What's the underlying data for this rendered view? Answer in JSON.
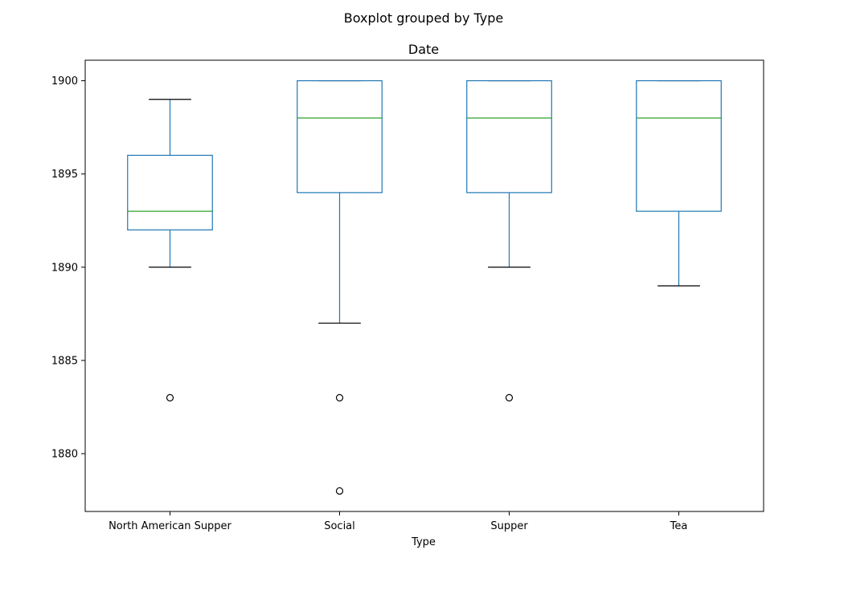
{
  "chart_data": {
    "type": "boxplot",
    "suptitle": "Boxplot grouped by Type",
    "title": "Date",
    "xlabel": "Type",
    "ylabel": "",
    "ylim": [
      1876.9,
      1901.1
    ],
    "yticks": [
      1880,
      1885,
      1890,
      1895,
      1900
    ],
    "grid": false,
    "categories": [
      "North American Supper",
      "Social",
      "Supper",
      "Tea"
    ],
    "boxes": [
      {
        "category": "North American Supper",
        "whisker_low": 1890,
        "q1": 1892,
        "median": 1893,
        "q3": 1896,
        "whisker_high": 1899,
        "outliers": [
          1883
        ]
      },
      {
        "category": "Social",
        "whisker_low": 1887,
        "q1": 1894,
        "median": 1898,
        "q3": 1900,
        "whisker_high": 1900,
        "outliers": [
          1883,
          1878
        ]
      },
      {
        "category": "Supper",
        "whisker_low": 1890,
        "q1": 1894,
        "median": 1898,
        "q3": 1900,
        "whisker_high": 1900,
        "outliers": [
          1883
        ]
      },
      {
        "category": "Tea",
        "whisker_low": 1889,
        "q1": 1893,
        "median": 1898,
        "q3": 1900,
        "whisker_high": 1900,
        "outliers": []
      }
    ],
    "colors": {
      "box": "#1f77b4",
      "median": "#2ca02c",
      "whisker_cap": "#000000",
      "outlier": "#000000"
    }
  }
}
